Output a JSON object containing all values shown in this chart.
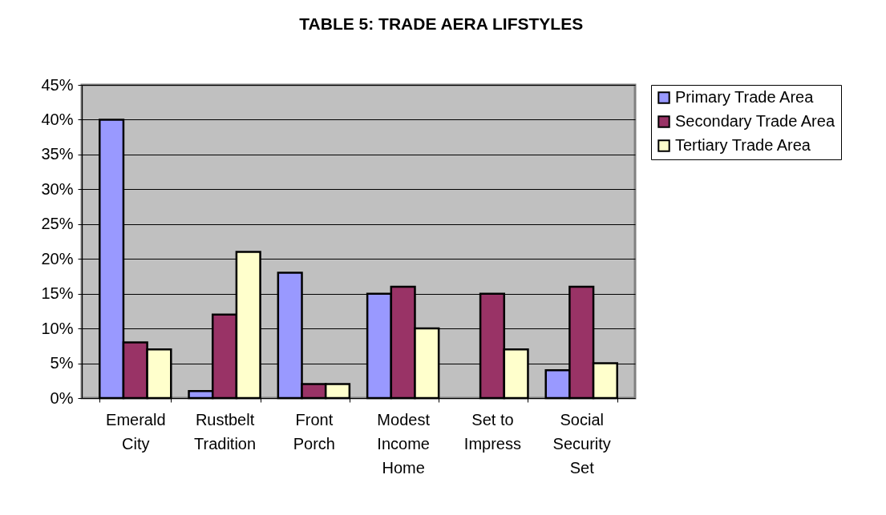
{
  "chart_data": {
    "type": "bar",
    "title": "TABLE 5: TRADE AERA LIFSTYLES",
    "categories": [
      "Emerald City",
      "Rustbelt Tradition",
      "Front Porch",
      "Modest Income Home",
      "Set to Impress",
      "Social Security Set"
    ],
    "series": [
      {
        "name": "Primary Trade Area",
        "color": "#9999ff",
        "values": [
          40,
          1,
          18,
          15,
          null,
          4
        ]
      },
      {
        "name": "Secondary Trade Area",
        "color": "#993366",
        "values": [
          8,
          12,
          2,
          16,
          15,
          16
        ]
      },
      {
        "name": "Tertiary Trade Area",
        "color": "#ffffcc",
        "values": [
          7,
          21,
          2,
          10,
          7,
          5
        ]
      }
    ],
    "ylim": [
      0,
      45
    ],
    "yticks": [
      {
        "value": 0,
        "label": "0%"
      },
      {
        "value": 5,
        "label": "5%"
      },
      {
        "value": 10,
        "label": "10%"
      },
      {
        "value": 15,
        "label": "15%"
      },
      {
        "value": 20,
        "label": "20%"
      },
      {
        "value": 25,
        "label": "25%"
      },
      {
        "value": 30,
        "label": "30%"
      },
      {
        "value": 35,
        "label": "35%"
      },
      {
        "value": 40,
        "label": "40%"
      },
      {
        "value": 45,
        "label": "45%"
      }
    ],
    "grid": "y",
    "legend": "right"
  }
}
